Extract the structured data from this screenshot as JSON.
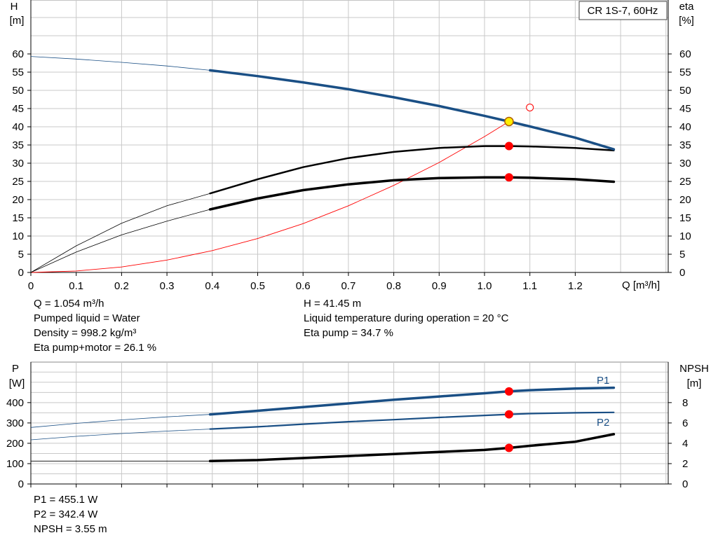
{
  "colors": {
    "head_curve": "#1a4f85",
    "power_curve": "#1a4f85",
    "efficiency_curve": "#000000",
    "npsh_curve": "#000000",
    "system_curve": "#ff0000",
    "duty_point": "#ff0000",
    "duty_point_head": "#ffee00",
    "grid": "#c8c8c8"
  },
  "top_chart": {
    "title": "CR 1S-7, 60Hz",
    "y_left_label": [
      "H",
      "[m]"
    ],
    "y_right_label": [
      "eta",
      "[%]"
    ],
    "x_label": "Q [m³/h]",
    "x_ticks": [
      "0",
      "0.1",
      "0.2",
      "0.3",
      "0.4",
      "0.5",
      "0.6",
      "0.7",
      "0.8",
      "0.9",
      "1.0",
      "1.1",
      "1.2"
    ],
    "y_ticks": [
      "0",
      "5",
      "10",
      "15",
      "20",
      "25",
      "30",
      "35",
      "40",
      "45",
      "50",
      "55",
      "60"
    ]
  },
  "operating_info": {
    "left": [
      "Q = 1.054 m³/h",
      "Pumped liquid = Water",
      "Density = 998.2 kg/m³",
      "Eta pump+motor = 26.1 %"
    ],
    "right": [
      "H = 41.45 m",
      "Liquid temperature during operation = 20 °C",
      "Eta pump = 34.7 %"
    ]
  },
  "bottom_chart": {
    "y_left_label": [
      "P",
      "[W]"
    ],
    "y_right_label": [
      "NPSH",
      "[m]"
    ],
    "y_left_ticks": [
      "0",
      "100",
      "200",
      "300",
      "400"
    ],
    "y_right_ticks": [
      "0",
      "2",
      "4",
      "6",
      "8"
    ],
    "series_labels": [
      "P1",
      "P2"
    ]
  },
  "power_info": [
    "P1 = 455.1 W",
    "P2 = 342.4 W",
    "NPSH = 3.55 m"
  ],
  "chart_data": [
    {
      "type": "line",
      "title": "CR 1S-7, 60Hz",
      "xlabel": "Q [m³/h]",
      "ylabel": "H [m]",
      "y2label": "eta [%]",
      "xlim": [
        0,
        1.4
      ],
      "ylim": [
        0,
        60
      ],
      "y2lim": [
        0,
        60
      ],
      "grid": true,
      "series": [
        {
          "name": "H",
          "axis": "left",
          "thin_until_x": 0.395,
          "x": [
            0,
            0.1,
            0.2,
            0.3,
            0.395,
            0.5,
            0.6,
            0.7,
            0.8,
            0.9,
            1.0,
            1.054,
            1.1,
            1.2,
            1.285
          ],
          "y": [
            59.3,
            58.6,
            57.7,
            56.7,
            55.5,
            53.9,
            52.2,
            50.3,
            48.1,
            45.7,
            43.0,
            41.45,
            40.1,
            37.0,
            33.8
          ]
        },
        {
          "name": "Eta pump",
          "axis": "right",
          "thin_until_x": 0.395,
          "x": [
            0,
            0.1,
            0.2,
            0.3,
            0.395,
            0.5,
            0.6,
            0.7,
            0.8,
            0.9,
            1.0,
            1.054,
            1.1,
            1.2,
            1.285
          ],
          "y": [
            0,
            7.3,
            13.5,
            18.3,
            21.7,
            25.6,
            28.9,
            31.4,
            33.1,
            34.2,
            34.7,
            34.7,
            34.6,
            34.2,
            33.5
          ]
        },
        {
          "name": "Eta pump+motor",
          "axis": "right",
          "thin_until_x": 0.395,
          "x": [
            0,
            0.1,
            0.2,
            0.3,
            0.395,
            0.5,
            0.6,
            0.7,
            0.8,
            0.9,
            1.0,
            1.054,
            1.1,
            1.2,
            1.285
          ],
          "y": [
            0,
            5.6,
            10.3,
            14.1,
            17.3,
            20.3,
            22.6,
            24.2,
            25.3,
            25.9,
            26.1,
            26.1,
            26.0,
            25.6,
            24.9
          ]
        },
        {
          "name": "System curve",
          "axis": "left",
          "thin_until_x": 1.054,
          "x": [
            0,
            0.1,
            0.2,
            0.3,
            0.4,
            0.5,
            0.6,
            0.7,
            0.8,
            0.9,
            1.0,
            1.054
          ],
          "y": [
            0,
            0.4,
            1.5,
            3.4,
            6.0,
            9.3,
            13.4,
            18.3,
            23.9,
            30.2,
            37.3,
            41.45
          ]
        }
      ],
      "duty_points": [
        {
          "name": "H",
          "x": 1.054,
          "y": 41.45
        },
        {
          "name": "Eta pump",
          "x": 1.054,
          "y": 34.7
        },
        {
          "name": "Eta pump+motor",
          "x": 1.054,
          "y": 26.1
        }
      ],
      "open_marker": {
        "x": 1.1,
        "y": 45.3
      }
    },
    {
      "type": "line",
      "xlabel": "Q [m³/h]",
      "ylabel": "P [W]",
      "y2label": "NPSH [m]",
      "xlim": [
        0,
        1.4
      ],
      "ylim": [
        0,
        500
      ],
      "y2lim": [
        0,
        10
      ],
      "grid": true,
      "series": [
        {
          "name": "P1",
          "axis": "left",
          "thin_until_x": 0.395,
          "x": [
            0,
            0.1,
            0.2,
            0.3,
            0.395,
            0.5,
            0.6,
            0.7,
            0.8,
            0.9,
            1.0,
            1.054,
            1.1,
            1.2,
            1.285
          ],
          "y": [
            278,
            298,
            315,
            330,
            342,
            360,
            378,
            396,
            414,
            430,
            446,
            455.1,
            461,
            469,
            473
          ]
        },
        {
          "name": "P2",
          "axis": "left",
          "thin_until_x": 0.395,
          "x": [
            0,
            0.1,
            0.2,
            0.3,
            0.395,
            0.5,
            0.6,
            0.7,
            0.8,
            0.9,
            1.0,
            1.054,
            1.1,
            1.2,
            1.285
          ],
          "y": [
            217,
            234,
            248,
            260,
            270,
            281,
            294,
            306,
            316,
            327,
            337,
            342.4,
            346,
            350,
            352
          ]
        },
        {
          "name": "NPSH",
          "axis": "right",
          "thin_until_x": 0.395,
          "x": [
            0,
            0.1,
            0.2,
            0.3,
            0.395,
            0.5,
            0.6,
            0.7,
            0.8,
            0.9,
            1.0,
            1.054,
            1.1,
            1.2,
            1.285
          ],
          "y": [
            2.25,
            2.25,
            2.25,
            2.25,
            2.25,
            2.35,
            2.55,
            2.75,
            2.95,
            3.15,
            3.35,
            3.55,
            3.75,
            4.15,
            4.9
          ]
        }
      ],
      "duty_points": [
        {
          "name": "P1",
          "x": 1.054,
          "y": 455.1
        },
        {
          "name": "P2",
          "x": 1.054,
          "y": 342.4
        },
        {
          "name": "NPSH",
          "x": 1.054,
          "y": 3.55
        }
      ]
    }
  ]
}
